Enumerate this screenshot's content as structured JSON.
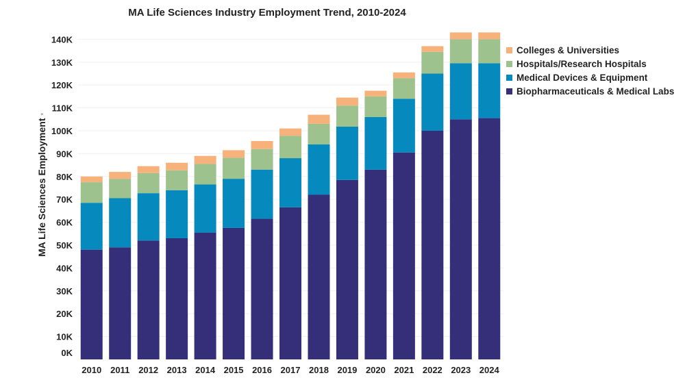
{
  "chart_data": {
    "type": "bar",
    "stacked": true,
    "title": "MA Life Sciences Industry Employment Trend, 2010-2024",
    "xlabel": "",
    "ylabel": "MA Life Sciences Employment",
    "ylabel_note": "*",
    "ylim": [
      0,
      144
    ],
    "yticks": [
      0,
      10,
      20,
      30,
      40,
      50,
      60,
      70,
      80,
      90,
      100,
      110,
      120,
      130,
      140
    ],
    "ytick_labels": [
      "0K",
      "10K",
      "20K",
      "30K",
      "40K",
      "50K",
      "60K",
      "70K",
      "80K",
      "90K",
      "100K",
      "110K",
      "120K",
      "130K",
      "140K"
    ],
    "grid": true,
    "legend_position": "right",
    "categories": [
      "2010",
      "2011",
      "2012",
      "2013",
      "2014",
      "2015",
      "2016",
      "2017",
      "2018",
      "2019",
      "2020",
      "2021",
      "2022",
      "2023",
      "2024"
    ],
    "series": [
      {
        "name": "Biopharmaceuticals & Medical Labs",
        "color": "#352e78",
        "values": [
          48,
          49,
          52,
          53,
          55.5,
          57.5,
          61.5,
          66.5,
          72,
          78.5,
          83,
          90.5,
          100,
          105,
          105.5
        ]
      },
      {
        "name": "Medical Devices & Equipment",
        "color": "#0689bc",
        "values": [
          20.5,
          21.5,
          20.7,
          21,
          21,
          21.5,
          21.5,
          21.5,
          22,
          23.3,
          23,
          23.5,
          25,
          24.5,
          24
        ]
      },
      {
        "name": "Hospitals/Research Hospitals",
        "color": "#9dc28e",
        "values": [
          9,
          8.5,
          8.8,
          8.7,
          9,
          9.2,
          9,
          9.8,
          9,
          9.2,
          9,
          9,
          9.5,
          10.5,
          10.5
        ]
      },
      {
        "name": "Colleges & Universities",
        "color": "#f7b27c",
        "values": [
          2.5,
          3,
          3,
          3.3,
          3.5,
          3.3,
          3.5,
          3.2,
          4,
          3.5,
          2.5,
          2.5,
          2.5,
          3,
          3
        ]
      }
    ],
    "legend_order": [
      3,
      2,
      1,
      0
    ]
  }
}
